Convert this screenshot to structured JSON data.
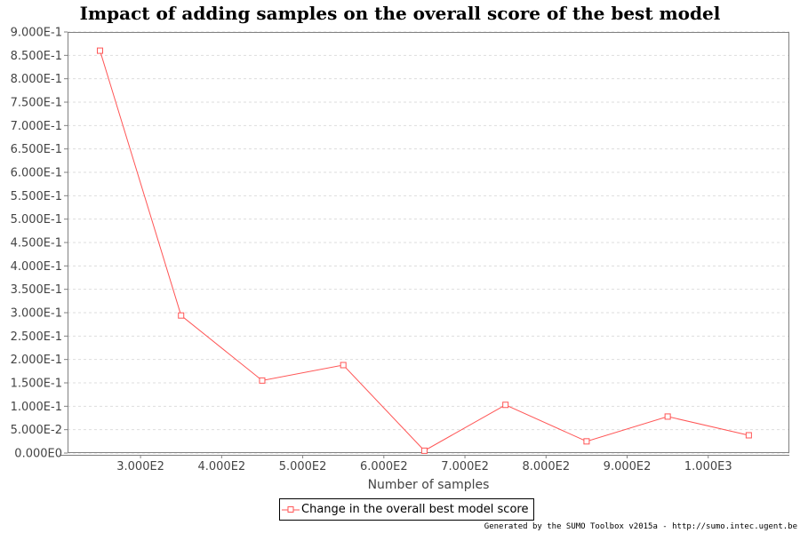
{
  "chart_data": {
    "type": "line",
    "title": "Impact of adding samples on the overall score of the best model",
    "xlabel": "Number of samples",
    "ylabel": "",
    "x": [
      250,
      350,
      450,
      550,
      650,
      750,
      850,
      950,
      1050
    ],
    "series": [
      {
        "name": "Change in the overall best model score",
        "values": [
          0.86,
          0.294,
          0.155,
          0.188,
          0.005,
          0.103,
          0.025,
          0.078,
          0.038
        ],
        "color": "#ff5555"
      }
    ],
    "xlim": [
      210,
      1100
    ],
    "ylim": [
      0,
      0.9
    ],
    "xticks": [
      {
        "value": 300,
        "label": "3.000E2"
      },
      {
        "value": 400,
        "label": "4.000E2"
      },
      {
        "value": 500,
        "label": "5.000E2"
      },
      {
        "value": 600,
        "label": "6.000E2"
      },
      {
        "value": 700,
        "label": "7.000E2"
      },
      {
        "value": 800,
        "label": "8.000E2"
      },
      {
        "value": 900,
        "label": "9.000E2"
      },
      {
        "value": 1000,
        "label": "1.000E3"
      }
    ],
    "yticks": [
      {
        "value": 0.0,
        "label": "0.000E0"
      },
      {
        "value": 0.05,
        "label": "5.000E-2"
      },
      {
        "value": 0.1,
        "label": "1.000E-1"
      },
      {
        "value": 0.15,
        "label": "1.500E-1"
      },
      {
        "value": 0.2,
        "label": "2.000E-1"
      },
      {
        "value": 0.25,
        "label": "2.500E-1"
      },
      {
        "value": 0.3,
        "label": "3.000E-1"
      },
      {
        "value": 0.35,
        "label": "3.500E-1"
      },
      {
        "value": 0.4,
        "label": "4.000E-1"
      },
      {
        "value": 0.45,
        "label": "4.500E-1"
      },
      {
        "value": 0.5,
        "label": "5.000E-1"
      },
      {
        "value": 0.55,
        "label": "5.500E-1"
      },
      {
        "value": 0.6,
        "label": "6.000E-1"
      },
      {
        "value": 0.65,
        "label": "6.500E-1"
      },
      {
        "value": 0.7,
        "label": "7.000E-1"
      },
      {
        "value": 0.75,
        "label": "7.500E-1"
      },
      {
        "value": 0.8,
        "label": "8.000E-1"
      },
      {
        "value": 0.85,
        "label": "8.500E-1"
      },
      {
        "value": 0.9,
        "label": "9.000E-1"
      }
    ],
    "grid": true,
    "legend": "bottom-center",
    "marker": "hollow-square"
  },
  "footer": {
    "credit": "Generated by the SUMO Toolbox v2015a - http://sumo.intec.ugent.be"
  }
}
